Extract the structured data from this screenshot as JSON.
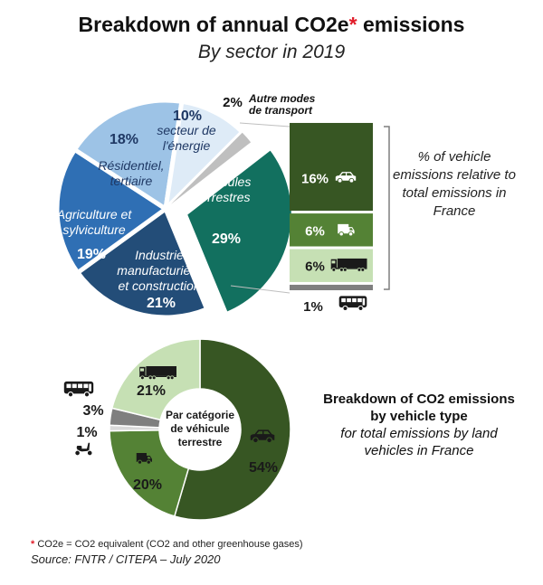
{
  "title": {
    "main": "Breakdown of annual CO2e",
    "star": "*",
    "after": " emissions"
  },
  "subtitle": "By sector in 2019",
  "vehicle_caption": "% of vehicle emissions relative to total emissions in France",
  "vehicle_type_caption": {
    "heading": "Breakdown of CO2 emissions by vehicle type",
    "sub": "for total emissions by land vehicles in France"
  },
  "donut_center": "Par catégorie de véhicule terrestre",
  "footnote": {
    "star": "*",
    "text": " CO2e = CO2 equivalent (CO2 and other greenhouse gases)"
  },
  "source": "Source: FNTR / CITEPA – July 2020",
  "colors": {
    "vehicles": "#12705f",
    "industry": "#234d78",
    "agriculture": "#2f6fb4",
    "residential": "#9dc3e6",
    "energy": "#deebf7",
    "other_transport": "#bfbfbf",
    "cars": "#375623",
    "vans": "#548235",
    "trucks": "#c6e0b4",
    "buses": "#7f7f7f",
    "two_wheelers": "#d9d9d9"
  },
  "chart_data": [
    {
      "type": "pie",
      "slices": [
        {
          "label": "Véhicules terrestres",
          "value": 29,
          "value_label": "29%",
          "label_lines": [
            "Véhicules",
            "terrestres"
          ],
          "color_key": "vehicles",
          "exploded": true
        },
        {
          "label": "Industrie manufacturière et construction",
          "value": 21,
          "value_label": "21%",
          "label_lines": [
            "Industrie",
            "manufacturière",
            "et construction"
          ],
          "color_key": "industry",
          "exploded": false
        },
        {
          "label": "Agriculture et sylviculture",
          "value": 19,
          "value_label": "19%",
          "label_lines": [
            "Agriculture et",
            "sylviculture"
          ],
          "color_key": "agriculture",
          "exploded": false
        },
        {
          "label": "Résidentiel, tertiaire",
          "value": 18,
          "value_label": "18%",
          "label_lines": [
            "Résidentiel,",
            "tertiaire"
          ],
          "color_key": "residential",
          "exploded": false
        },
        {
          "label": "secteur de l'énergie",
          "value": 10,
          "value_label": "10%",
          "label_lines": [
            "secteur de",
            "l'énergie"
          ],
          "color_key": "energy",
          "exploded": false
        },
        {
          "label": "Autre modes de transport",
          "value": 2,
          "value_label": "2%",
          "label_lines": [
            "Autre modes",
            "de transport"
          ],
          "color_key": "other_transport",
          "exploded": false
        }
      ]
    },
    {
      "type": "bar",
      "stacked": true,
      "categories": [
        "cars",
        "vans",
        "trucks",
        "buses"
      ],
      "values": [
        16,
        6,
        6,
        1
      ],
      "value_labels": [
        "16%",
        "6%",
        "6%",
        "1%"
      ],
      "icons": [
        "car-icon",
        "van-icon",
        "truck-icon",
        "bus-icon"
      ],
      "color_keys": [
        "cars",
        "vans",
        "trucks",
        "buses"
      ]
    },
    {
      "type": "pie",
      "donut": true,
      "slices": [
        {
          "label": "cars",
          "value": 54,
          "value_label": "54%",
          "icon": "car-icon",
          "color_key": "cars"
        },
        {
          "label": "vans",
          "value": 20,
          "value_label": "20%",
          "icon": "van-icon",
          "color_key": "vans"
        },
        {
          "label": "two wheelers",
          "value": 1,
          "value_label": "1%",
          "icon": "scooter-icon",
          "color_key": "two_wheelers"
        },
        {
          "label": "buses",
          "value": 3,
          "value_label": "3%",
          "icon": "bus-icon",
          "color_key": "buses"
        },
        {
          "label": "trucks",
          "value": 21,
          "value_label": "21%",
          "icon": "truck-icon",
          "color_key": "trucks"
        }
      ]
    }
  ]
}
